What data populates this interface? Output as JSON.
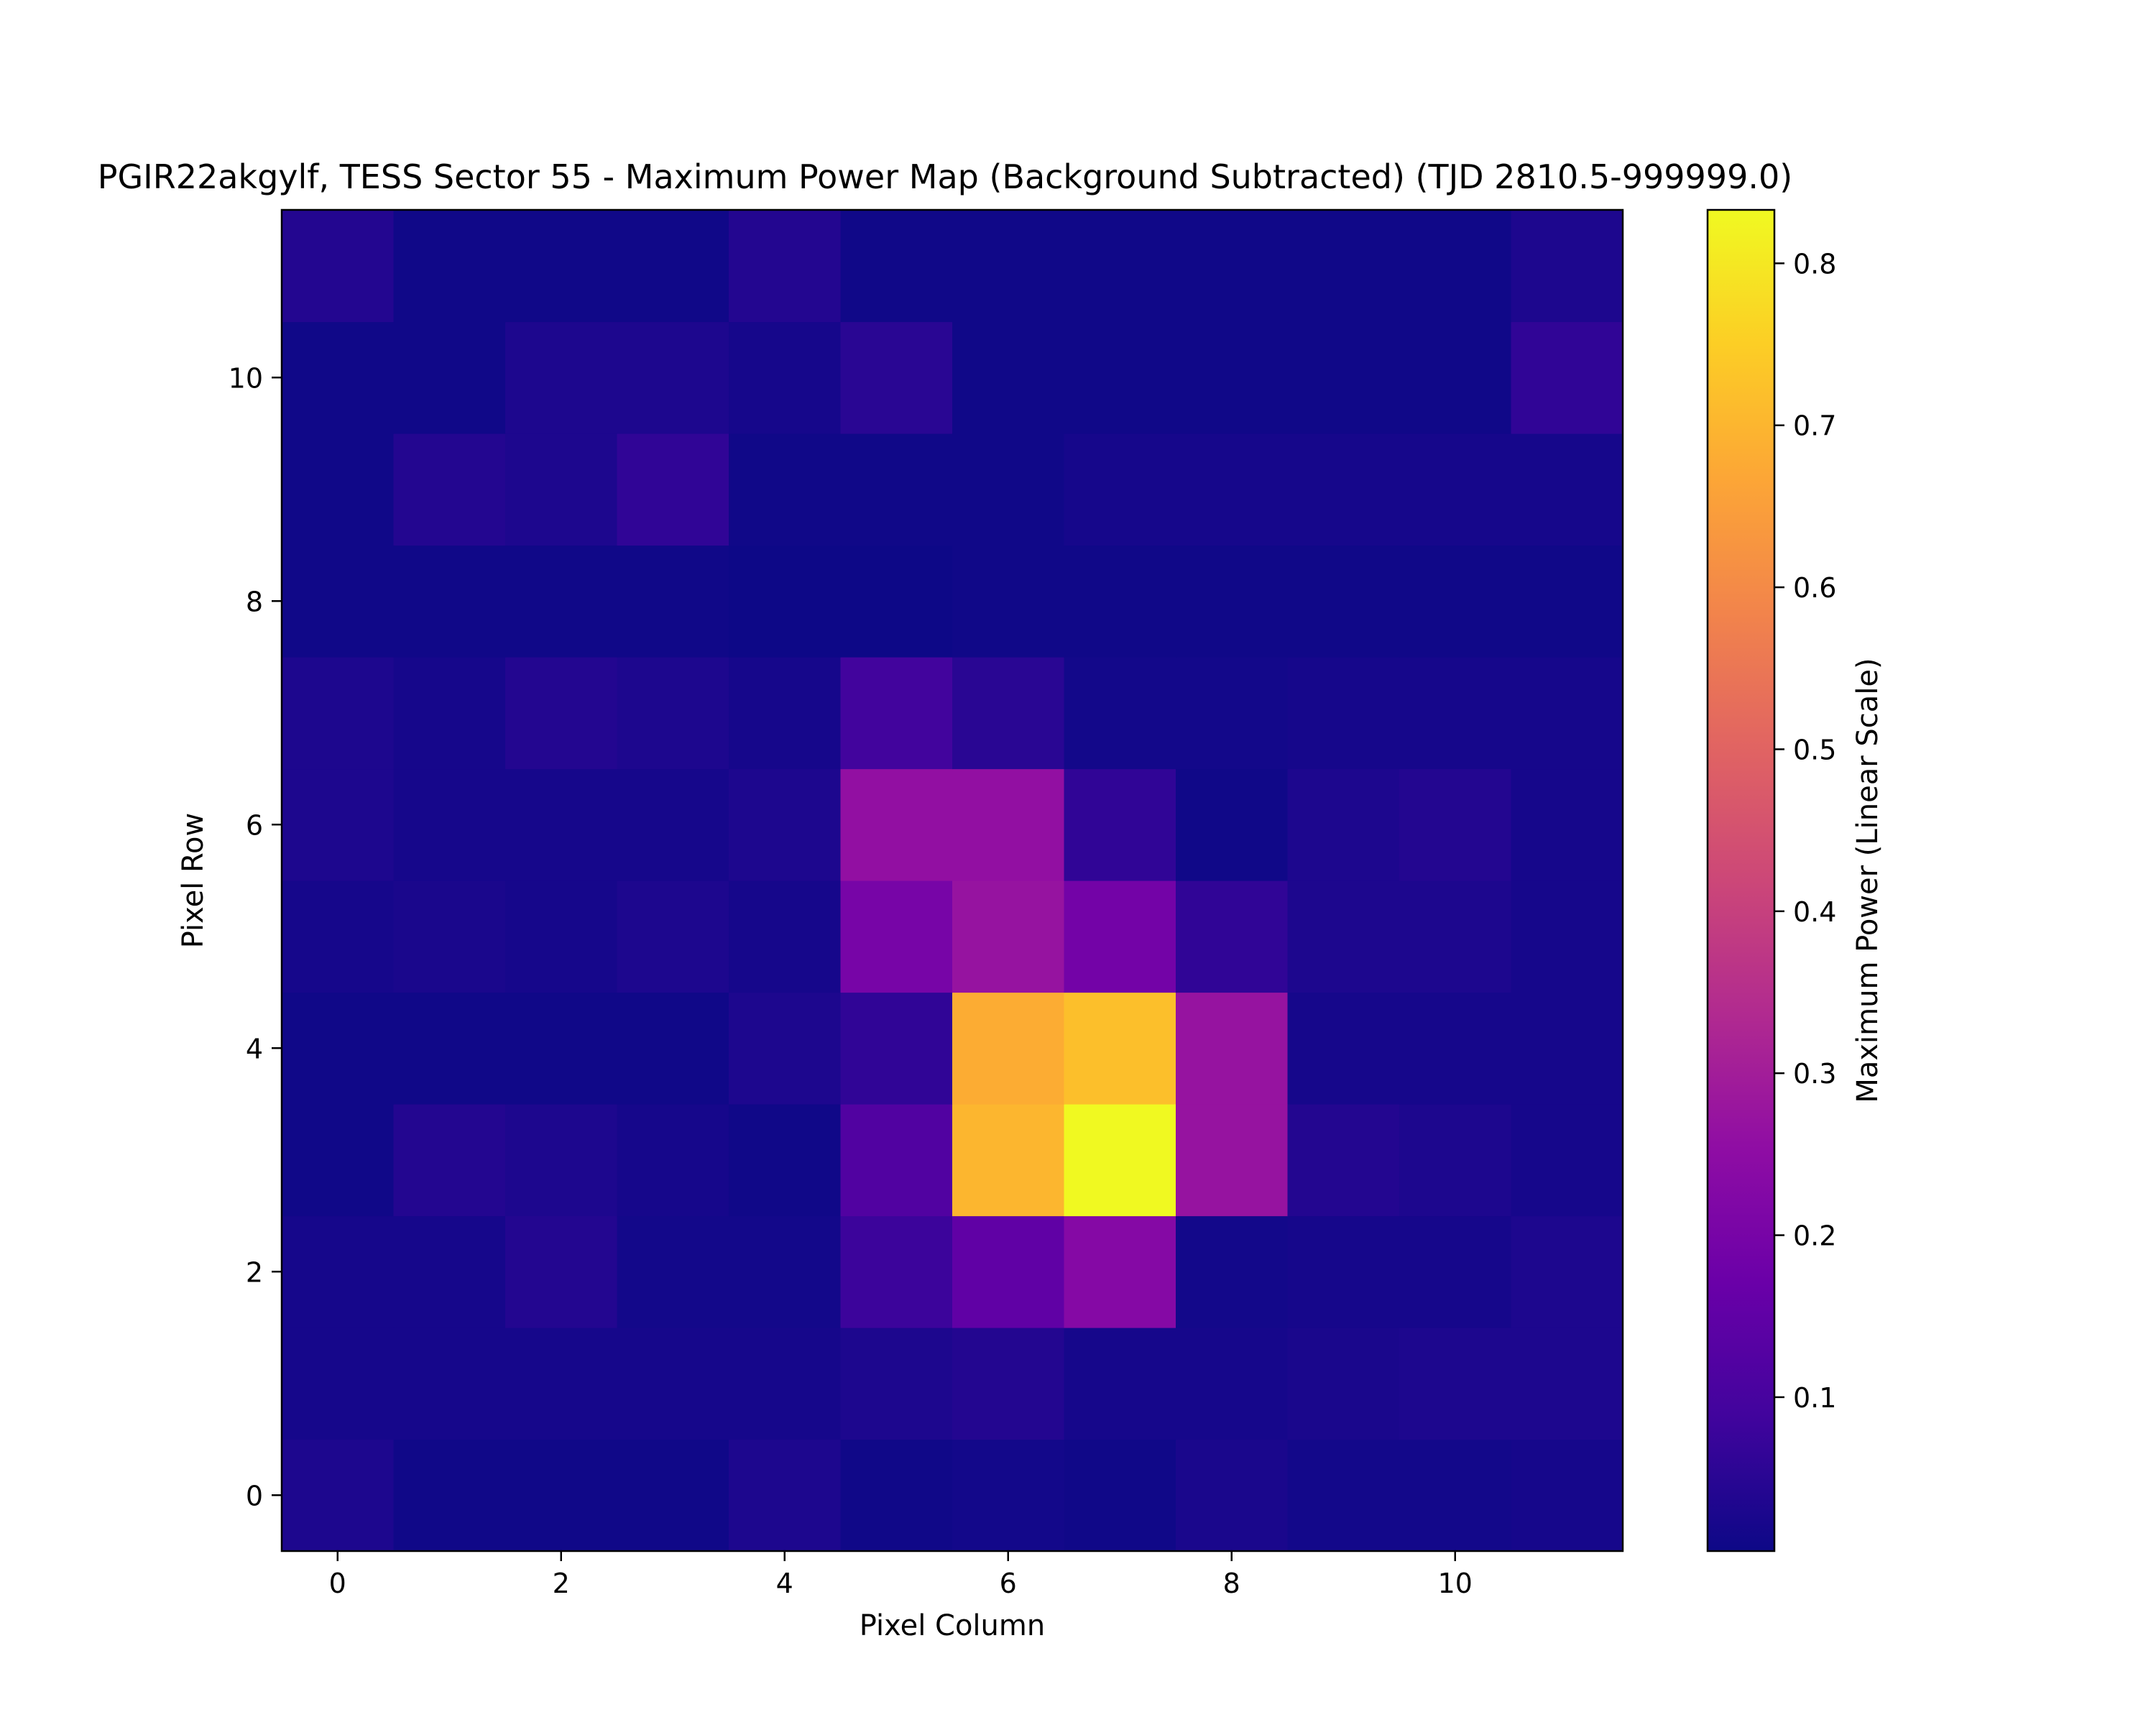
{
  "chart_data": {
    "type": "heatmap",
    "title": "PGIR22akgylf, TESS Sector 55 - Maximum Power Map (Background Subtracted) (TJD 2810.5-999999.0)",
    "xlabel": "Pixel Column",
    "ylabel": "Pixel Row",
    "colorbar_label": "Maximum Power (Linear Scale)",
    "colormap": "plasma",
    "xlim": [
      -0.5,
      11.5
    ],
    "ylim": [
      -0.5,
      11.5
    ],
    "x_ticks": [
      0,
      2,
      4,
      6,
      8,
      10
    ],
    "y_ticks": [
      0,
      2,
      4,
      6,
      8,
      10
    ],
    "color_range": [
      0.005,
      0.833
    ],
    "colorbar_ticks": [
      0.1,
      0.2,
      0.3,
      0.4,
      0.5,
      0.6,
      0.7,
      0.8
    ],
    "rows_note": "values[r][c] is the cell at Pixel Row r (0 = bottom) and Pixel Column c",
    "values": [
      [
        0.03,
        0.01,
        0.01,
        0.01,
        0.03,
        0.01,
        0.015,
        0.01,
        0.025,
        0.015,
        0.015,
        0.02
      ],
      [
        0.02,
        0.02,
        0.02,
        0.02,
        0.02,
        0.03,
        0.04,
        0.02,
        0.02,
        0.025,
        0.03,
        0.03
      ],
      [
        0.02,
        0.02,
        0.04,
        0.015,
        0.015,
        0.08,
        0.15,
        0.23,
        0.015,
        0.02,
        0.02,
        0.03
      ],
      [
        0.01,
        0.04,
        0.03,
        0.02,
        0.01,
        0.12,
        0.7,
        0.833,
        0.27,
        0.04,
        0.03,
        0.02
      ],
      [
        0.01,
        0.01,
        0.01,
        0.01,
        0.03,
        0.06,
        0.68,
        0.72,
        0.27,
        0.02,
        0.02,
        0.02
      ],
      [
        0.02,
        0.025,
        0.02,
        0.03,
        0.02,
        0.2,
        0.27,
        0.19,
        0.06,
        0.03,
        0.03,
        0.02
      ],
      [
        0.03,
        0.02,
        0.02,
        0.02,
        0.03,
        0.26,
        0.26,
        0.06,
        0.01,
        0.03,
        0.04,
        0.02
      ],
      [
        0.03,
        0.02,
        0.04,
        0.03,
        0.02,
        0.09,
        0.05,
        0.015,
        0.015,
        0.02,
        0.02,
        0.02
      ],
      [
        0.01,
        0.01,
        0.01,
        0.01,
        0.005,
        0.005,
        0.01,
        0.01,
        0.01,
        0.01,
        0.01,
        0.01
      ],
      [
        0.01,
        0.04,
        0.03,
        0.06,
        0.01,
        0.01,
        0.01,
        0.02,
        0.02,
        0.02,
        0.02,
        0.02
      ],
      [
        0.01,
        0.01,
        0.03,
        0.03,
        0.02,
        0.05,
        0.01,
        0.01,
        0.01,
        0.01,
        0.01,
        0.06
      ],
      [
        0.04,
        0.01,
        0.01,
        0.01,
        0.04,
        0.01,
        0.01,
        0.01,
        0.01,
        0.01,
        0.01,
        0.03
      ]
    ]
  }
}
